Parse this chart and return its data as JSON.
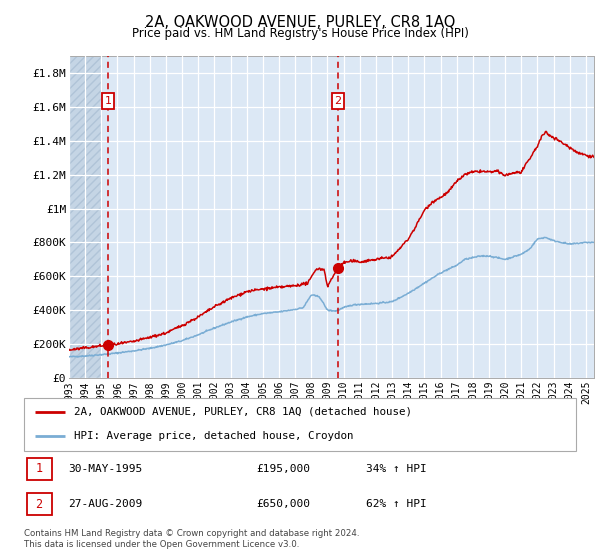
{
  "title": "2A, OAKWOOD AVENUE, PURLEY, CR8 1AQ",
  "subtitle": "Price paid vs. HM Land Registry's House Price Index (HPI)",
  "legend_line1": "2A, OAKWOOD AVENUE, PURLEY, CR8 1AQ (detached house)",
  "legend_line2": "HPI: Average price, detached house, Croydon",
  "transaction1_date": "30-MAY-1995",
  "transaction1_price": "£195,000",
  "transaction1_hpi": "34% ↑ HPI",
  "transaction1_year": 1995.41,
  "transaction1_value": 195000,
  "transaction2_date": "27-AUG-2009",
  "transaction2_price": "£650,000",
  "transaction2_hpi": "62% ↑ HPI",
  "transaction2_year": 2009.65,
  "transaction2_value": 650000,
  "hpi_line_color": "#7aadd4",
  "property_line_color": "#cc0000",
  "dot_color": "#cc0000",
  "vline_color": "#cc0000",
  "background_color": "#dce8f5",
  "hatch_region_end": 1995.0,
  "grid_color": "#ffffff",
  "ylim": [
    0,
    1900000
  ],
  "xlim_start": 1993.0,
  "xlim_end": 2025.5,
  "footer": "Contains HM Land Registry data © Crown copyright and database right 2024.\nThis data is licensed under the Open Government Licence v3.0.",
  "yticks": [
    0,
    200000,
    400000,
    600000,
    800000,
    1000000,
    1200000,
    1400000,
    1600000,
    1800000
  ],
  "ytick_labels": [
    "£0",
    "£200K",
    "£400K",
    "£600K",
    "£800K",
    "£1M",
    "£1.2M",
    "£1.4M",
    "£1.6M",
    "£1.8M"
  ],
  "hpi_anchors_x": [
    1993.0,
    1994.0,
    1995.0,
    1995.5,
    1996.0,
    1997.0,
    1998.0,
    1999.0,
    2000.0,
    2001.0,
    2002.0,
    2003.0,
    2004.0,
    2005.0,
    2006.0,
    2007.0,
    2007.5,
    2008.0,
    2008.5,
    2009.0,
    2009.5,
    2010.0,
    2010.5,
    2011.0,
    2012.0,
    2013.0,
    2014.0,
    2015.0,
    2016.0,
    2017.0,
    2017.5,
    2018.0,
    2018.5,
    2019.0,
    2020.0,
    2021.0,
    2021.5,
    2022.0,
    2022.5,
    2023.0,
    2024.0,
    2025.0,
    2025.5
  ],
  "hpi_anchors_y": [
    125000,
    130000,
    138000,
    142000,
    148000,
    160000,
    175000,
    195000,
    220000,
    255000,
    295000,
    330000,
    360000,
    380000,
    390000,
    405000,
    415000,
    490000,
    480000,
    400000,
    395000,
    415000,
    430000,
    435000,
    440000,
    450000,
    500000,
    560000,
    620000,
    665000,
    700000,
    710000,
    720000,
    720000,
    700000,
    730000,
    760000,
    820000,
    830000,
    810000,
    790000,
    800000,
    800000
  ],
  "prop_anchors_x": [
    1993.0,
    1995.41,
    1996.0,
    1997.0,
    1998.0,
    1999.0,
    2000.0,
    2001.0,
    2002.0,
    2003.0,
    2004.0,
    2005.0,
    2006.0,
    2007.0,
    2007.8,
    2008.3,
    2008.8,
    2009.0,
    2009.65,
    2010.0,
    2010.5,
    2011.0,
    2012.0,
    2013.0,
    2014.0,
    2014.5,
    2015.0,
    2015.5,
    2016.0,
    2016.5,
    2017.0,
    2017.3,
    2017.5,
    2018.0,
    2018.5,
    2019.0,
    2019.5,
    2020.0,
    2020.5,
    2021.0,
    2021.5,
    2022.0,
    2022.3,
    2022.5,
    2022.8,
    2023.0,
    2023.5,
    2024.0,
    2024.5,
    2025.0,
    2025.5
  ],
  "prop_anchors_y": [
    165000,
    195000,
    200000,
    215000,
    240000,
    265000,
    310000,
    360000,
    420000,
    470000,
    510000,
    525000,
    535000,
    545000,
    560000,
    645000,
    640000,
    540000,
    650000,
    680000,
    690000,
    685000,
    700000,
    715000,
    820000,
    900000,
    990000,
    1040000,
    1065000,
    1100000,
    1160000,
    1185000,
    1200000,
    1215000,
    1220000,
    1215000,
    1220000,
    1195000,
    1210000,
    1215000,
    1290000,
    1370000,
    1430000,
    1450000,
    1430000,
    1420000,
    1390000,
    1360000,
    1330000,
    1315000,
    1305000
  ]
}
